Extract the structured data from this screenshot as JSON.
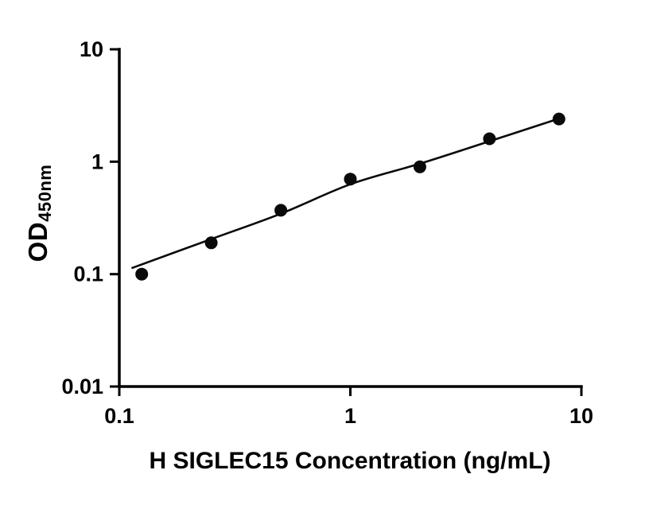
{
  "chart_data": {
    "type": "scatter",
    "title": "",
    "xlabel": "H SIGLEC15 Concentration (ng/mL)",
    "ylabel_main": "OD",
    "ylabel_sub": "450nm",
    "x_scale": "log",
    "y_scale": "log",
    "xlim": [
      0.1,
      10
    ],
    "ylim": [
      0.01,
      10
    ],
    "grid": false,
    "legend": false,
    "marker_color": "#0a0a0a",
    "line_color": "#0a0a0a",
    "axis_color": "#000000",
    "x_ticks": [
      {
        "value": 0.1,
        "label": "0.1"
      },
      {
        "value": 1,
        "label": "1"
      },
      {
        "value": 10,
        "label": "10"
      }
    ],
    "y_ticks": [
      {
        "value": 0.01,
        "label": "0.01"
      },
      {
        "value": 0.1,
        "label": "0.1"
      },
      {
        "value": 1,
        "label": "1"
      },
      {
        "value": 10,
        "label": "10"
      }
    ],
    "series": [
      {
        "name": "standard-curve-points",
        "points": [
          {
            "x": 0.125,
            "y": 0.1
          },
          {
            "x": 0.25,
            "y": 0.19
          },
          {
            "x": 0.5,
            "y": 0.37
          },
          {
            "x": 1,
            "y": 0.7
          },
          {
            "x": 2,
            "y": 0.9
          },
          {
            "x": 4,
            "y": 1.6
          },
          {
            "x": 8,
            "y": 2.4
          }
        ]
      }
    ],
    "fit_curve": [
      {
        "x": 0.113,
        "y": 0.113
      },
      {
        "x": 0.25,
        "y": 0.205
      },
      {
        "x": 0.5,
        "y": 0.345
      },
      {
        "x": 1,
        "y": 0.63
      },
      {
        "x": 2,
        "y": 0.96
      },
      {
        "x": 4,
        "y": 1.52
      },
      {
        "x": 8,
        "y": 2.42
      }
    ]
  }
}
